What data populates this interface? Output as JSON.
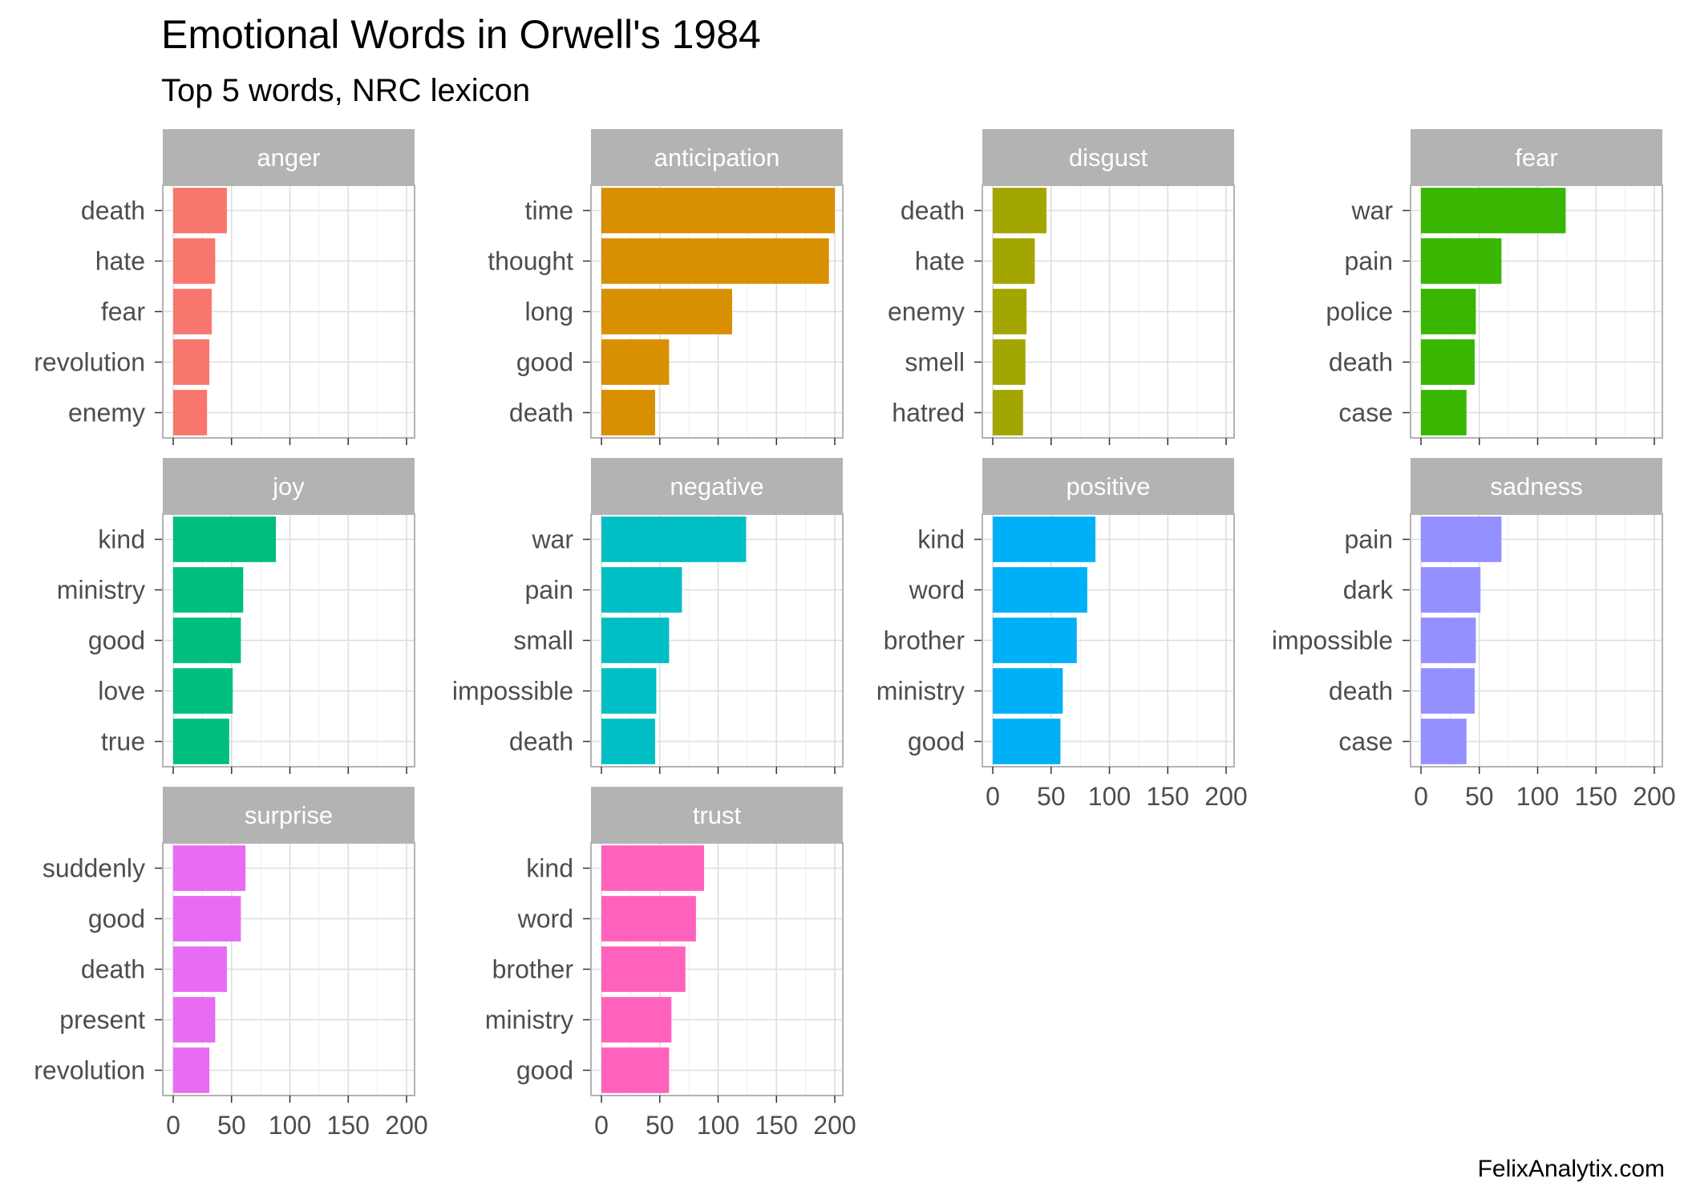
{
  "chart_data": {
    "type": "bar",
    "orientation": "horizontal",
    "facet_layout": "wrap",
    "title": "Emotional Words in Orwell's 1984",
    "subtitle": "Top 5 words, NRC lexicon",
    "caption": "FelixAnalytix.com",
    "xlim": [
      0,
      200
    ],
    "x_ticks": [
      "0",
      "50",
      "100",
      "150",
      "200"
    ],
    "grid": true,
    "legend": "none",
    "facets": [
      {
        "name": "anger",
        "color": "#F8766D",
        "words": [
          "death",
          "hate",
          "fear",
          "revolution",
          "enemy"
        ],
        "values": [
          46,
          36,
          33,
          31,
          29
        ]
      },
      {
        "name": "anticipation",
        "color": "#D89000",
        "words": [
          "time",
          "thought",
          "long",
          "good",
          "death"
        ],
        "values": [
          200,
          195,
          112,
          58,
          46
        ]
      },
      {
        "name": "disgust",
        "color": "#A3A500",
        "words": [
          "death",
          "hate",
          "enemy",
          "smell",
          "hatred"
        ],
        "values": [
          46,
          36,
          29,
          28,
          26
        ]
      },
      {
        "name": "fear",
        "color": "#39B600",
        "words": [
          "war",
          "pain",
          "police",
          "death",
          "case"
        ],
        "values": [
          124,
          69,
          47,
          46,
          39
        ]
      },
      {
        "name": "joy",
        "color": "#00BF7D",
        "words": [
          "kind",
          "ministry",
          "good",
          "love",
          "true"
        ],
        "values": [
          88,
          60,
          58,
          51,
          48
        ]
      },
      {
        "name": "negative",
        "color": "#00BFC4",
        "words": [
          "war",
          "pain",
          "small",
          "impossible",
          "death"
        ],
        "values": [
          124,
          69,
          58,
          47,
          46
        ]
      },
      {
        "name": "positive",
        "color": "#00B0F6",
        "words": [
          "kind",
          "word",
          "brother",
          "ministry",
          "good"
        ],
        "values": [
          88,
          81,
          72,
          60,
          58
        ]
      },
      {
        "name": "sadness",
        "color": "#9590FF",
        "words": [
          "pain",
          "dark",
          "impossible",
          "death",
          "case"
        ],
        "values": [
          69,
          51,
          47,
          46,
          39
        ]
      },
      {
        "name": "surprise",
        "color": "#E76BF3",
        "words": [
          "suddenly",
          "good",
          "death",
          "present",
          "revolution"
        ],
        "values": [
          62,
          58,
          46,
          36,
          31
        ]
      },
      {
        "name": "trust",
        "color": "#FF62BC",
        "words": [
          "kind",
          "word",
          "brother",
          "ministry",
          "good"
        ],
        "values": [
          88,
          81,
          72,
          60,
          58
        ]
      }
    ]
  }
}
